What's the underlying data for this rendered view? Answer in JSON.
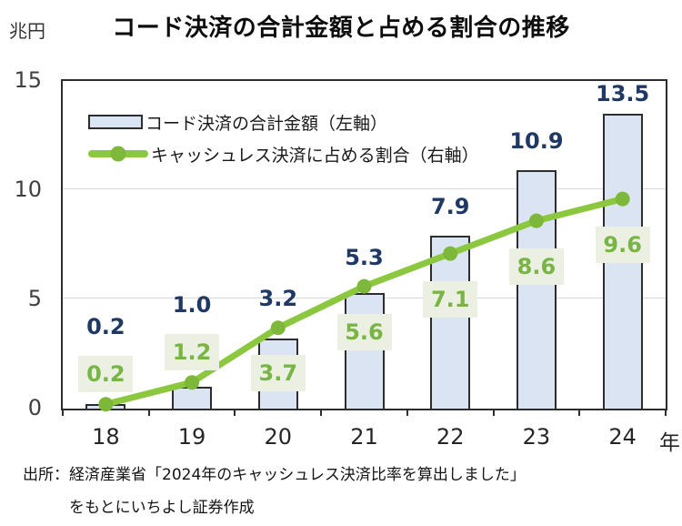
{
  "chart_data": {
    "type": "combo-bar-line",
    "title": "コード決済の合計金額と占める割合の推移",
    "categories": [
      "18",
      "19",
      "20",
      "21",
      "22",
      "23",
      "24"
    ],
    "x_axis_unit": "年",
    "left_axis": {
      "unit": "兆円",
      "ticks": [
        15,
        10,
        5,
        0
      ],
      "range": [
        0,
        15
      ],
      "gridline_values": [
        5,
        10
      ]
    },
    "right_axis": {
      "range": [
        0,
        15
      ],
      "tick_labels_visible": false
    },
    "series": [
      {
        "name": "コード決済の合計金額（左軸）",
        "type": "bar",
        "axis": "left",
        "values": [
          0.2,
          1.0,
          3.2,
          5.3,
          7.9,
          10.9,
          13.5
        ],
        "labels": [
          "0.2",
          "1.0",
          "3.2",
          "5.3",
          "7.9",
          "10.9",
          "13.5"
        ]
      },
      {
        "name": "キャッシュレス決済に占める割合（右軸）",
        "type": "line",
        "axis": "right",
        "values": [
          0.2,
          1.2,
          3.7,
          5.6,
          7.1,
          8.6,
          9.6
        ],
        "labels": [
          "0.2",
          "1.2",
          "3.7",
          "5.6",
          "7.1",
          "8.6",
          "9.6"
        ],
        "label_box_placement": [
          "above",
          "above",
          "below",
          "below",
          "below",
          "below",
          "below"
        ]
      }
    ],
    "legend_position": "top-left-inside",
    "grid": "horizontal",
    "colors": {
      "bar_fill": "#dbe4f2",
      "bar_border": "#2d2d2d",
      "bar_label": "#1f3864",
      "line": "#8cc83f",
      "marker": "#7db83a",
      "pct_label_text": "#78b544",
      "pct_label_bg": "#ebf0e3",
      "grid": "#d8d8d8"
    }
  },
  "source": {
    "line1": "出所：経済産業省「2024年のキャッシュレス決済比率を算出しました」",
    "line2": "をもとにいちよし証券作成"
  }
}
